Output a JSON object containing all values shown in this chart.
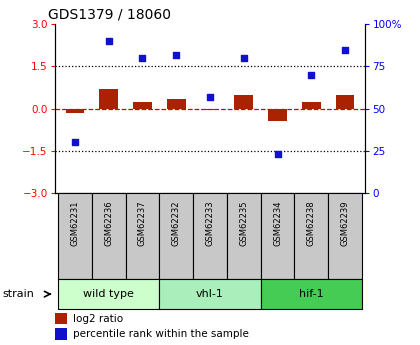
{
  "title": "GDS1379 / 18060",
  "samples": [
    "GSM62231",
    "GSM62236",
    "GSM62237",
    "GSM62232",
    "GSM62233",
    "GSM62235",
    "GSM62234",
    "GSM62238",
    "GSM62239"
  ],
  "log2_ratio": [
    -0.15,
    0.7,
    0.25,
    0.35,
    -0.05,
    0.5,
    -0.45,
    0.25,
    0.5
  ],
  "percentile_rank": [
    30,
    90,
    80,
    82,
    57,
    80,
    23,
    70,
    85
  ],
  "groups": [
    {
      "label": "wild type",
      "indices": [
        0,
        1,
        2
      ],
      "color": "#ccffcc"
    },
    {
      "label": "vhl-1",
      "indices": [
        3,
        4,
        5
      ],
      "color": "#aaeebb"
    },
    {
      "label": "hif-1",
      "indices": [
        6,
        7,
        8
      ],
      "color": "#44cc55"
    }
  ],
  "ylim_left": [
    -3,
    3
  ],
  "ylim_right": [
    0,
    100
  ],
  "yticks_left": [
    -3,
    -1.5,
    0,
    1.5,
    3
  ],
  "yticks_right": [
    0,
    25,
    50,
    75,
    100
  ],
  "hlines": [
    -1.5,
    1.5
  ],
  "bar_color": "#aa2200",
  "scatter_color": "#1111cc",
  "zero_line_color": "#cc0000",
  "background_color": "#ffffff",
  "legend_labels": [
    "log2 ratio",
    "percentile rank within the sample"
  ],
  "gray_color": "#c8c8c8"
}
